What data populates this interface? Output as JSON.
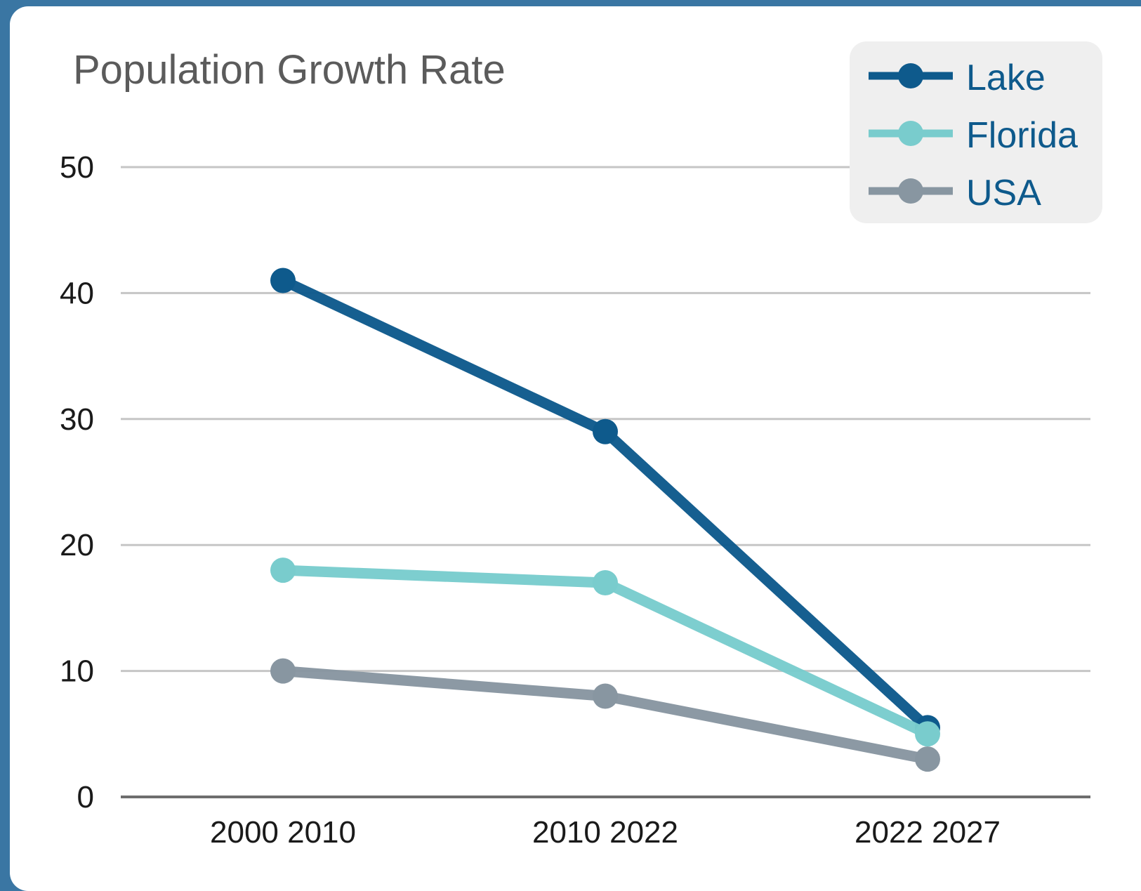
{
  "chart_data": {
    "type": "line",
    "title": "Population Growth Rate",
    "categories": [
      "2000 2010",
      "2010 2022",
      "2022 2027"
    ],
    "ylim": [
      0,
      50
    ],
    "yticks": [
      0,
      10,
      20,
      30,
      40,
      50
    ],
    "grid": true,
    "legend_position": "top-right",
    "series": [
      {
        "name": "Lake",
        "values": [
          41,
          29,
          5.5
        ],
        "color": "#0e5a8c"
      },
      {
        "name": "Florida",
        "values": [
          18,
          17,
          5
        ],
        "color": "#79cccd"
      },
      {
        "name": "USA",
        "values": [
          10,
          8,
          3
        ],
        "color": "#8896a1"
      }
    ]
  },
  "colors": {
    "frame": "#3a76a3",
    "grid": "#c6c6c6",
    "baseline": "#6e6e6e",
    "legend_bg": "#efefef"
  }
}
